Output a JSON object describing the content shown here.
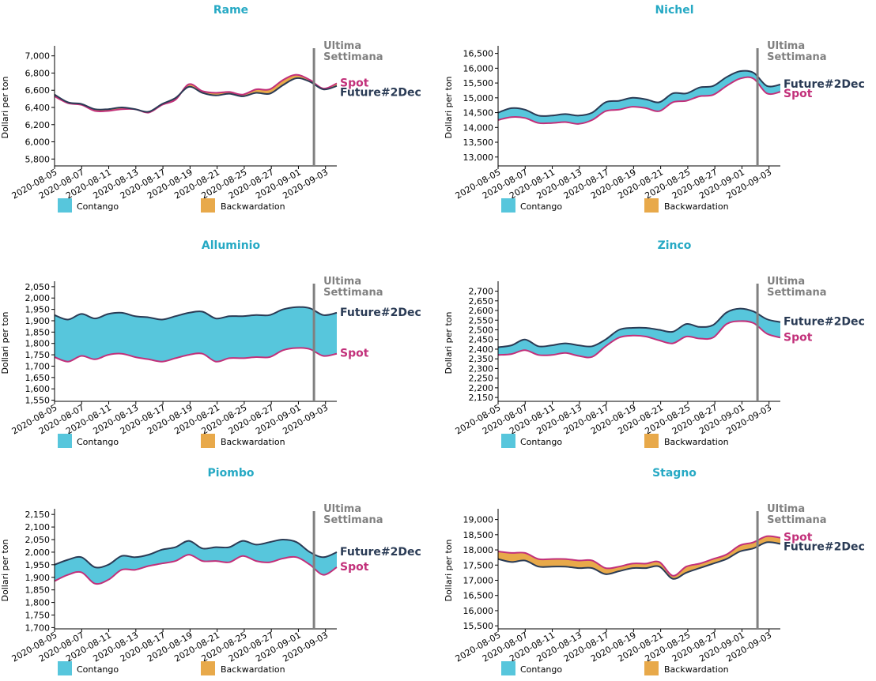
{
  "colors": {
    "title": "#26a9c4",
    "contango": "#57c6dc",
    "backwardation": "#e8a94a",
    "future_line": "#2a3b55",
    "spot_line": "#c2307a",
    "week_line": "#808080",
    "week_text": "#808080"
  },
  "labels": {
    "y_axis": "Dollari per ton",
    "legend_contango": "Contango",
    "legend_backwardation": "Backwardation",
    "future": "Future#2Dec",
    "spot": "Spot",
    "last_week_line1": "Ultima",
    "last_week_line2": "Settimana"
  },
  "chart_data": [
    {
      "type": "area",
      "title": "Rame",
      "xlabel": "",
      "ylabel": "Dollari per ton",
      "x_ticks": [
        "2020-08-05",
        "2020-08-07",
        "2020-08-11",
        "2020-08-13",
        "2020-08-17",
        "2020-08-19",
        "2020-08-21",
        "2020-08-25",
        "2020-08-27",
        "2020-09-01",
        "2020-09-03"
      ],
      "y_ticks": [
        "5,800",
        "6,000",
        "6,200",
        "6,400",
        "6,600",
        "6,800",
        "7,000"
      ],
      "y_tick_values": [
        5800,
        6000,
        6200,
        6400,
        6600,
        6800,
        7000
      ],
      "ylim": [
        5720,
        7080
      ],
      "last_week_index": 19.3,
      "legend": [
        "Contango",
        "Backwardation"
      ],
      "series": [
        {
          "name": "Future#2Dec",
          "values": [
            6550,
            6460,
            6440,
            6380,
            6380,
            6400,
            6380,
            6350,
            6440,
            6510,
            6640,
            6570,
            6540,
            6560,
            6530,
            6570,
            6560,
            6660,
            6740,
            6700,
            6610,
            6650
          ]
        },
        {
          "name": "Spot",
          "values": [
            6530,
            6450,
            6430,
            6360,
            6360,
            6380,
            6380,
            6340,
            6430,
            6490,
            6670,
            6590,
            6570,
            6580,
            6550,
            6610,
            6610,
            6720,
            6780,
            6720,
            6620,
            6680
          ]
        }
      ]
    },
    {
      "type": "area",
      "title": "Nichel",
      "xlabel": "",
      "ylabel": "Dollari per ton",
      "x_ticks": [
        "2020-08-05",
        "2020-08-07",
        "2020-08-11",
        "2020-08-13",
        "2020-08-17",
        "2020-08-19",
        "2020-08-21",
        "2020-08-25",
        "2020-08-27",
        "2020-09-01",
        "2020-09-03"
      ],
      "y_ticks": [
        "13,000",
        "13,500",
        "14,000",
        "14,500",
        "15,000",
        "15,500",
        "16,000",
        "16,500"
      ],
      "y_tick_values": [
        13000,
        13500,
        14000,
        14500,
        15000,
        15500,
        16000,
        16500
      ],
      "ylim": [
        12700,
        16650
      ],
      "last_week_index": 19.3,
      "legend": [
        "Contango",
        "Backwardation"
      ],
      "series": [
        {
          "name": "Future#2Dec",
          "values": [
            14500,
            14650,
            14600,
            14400,
            14400,
            14450,
            14400,
            14500,
            14850,
            14900,
            15000,
            14950,
            14850,
            15150,
            15150,
            15350,
            15400,
            15700,
            15900,
            15850,
            15400,
            15450
          ]
        },
        {
          "name": "Spot",
          "values": [
            14250,
            14350,
            14320,
            14150,
            14150,
            14180,
            14120,
            14250,
            14550,
            14600,
            14700,
            14650,
            14550,
            14850,
            14900,
            15050,
            15100,
            15400,
            15650,
            15650,
            15150,
            15200
          ]
        }
      ]
    },
    {
      "type": "area",
      "title": "Alluminio",
      "xlabel": "",
      "ylabel": "Dollari per ton",
      "x_ticks": [
        "2020-08-05",
        "2020-08-07",
        "2020-08-11",
        "2020-08-13",
        "2020-08-17",
        "2020-08-19",
        "2020-08-21",
        "2020-08-25",
        "2020-08-27",
        "2020-09-01",
        "2020-09-03"
      ],
      "y_ticks": [
        "1,550",
        "1,600",
        "1,650",
        "1,700",
        "1,750",
        "1,800",
        "1,850",
        "1,900",
        "1,950",
        "2,000",
        "2,050"
      ],
      "y_tick_values": [
        1550,
        1600,
        1650,
        1700,
        1750,
        1800,
        1850,
        1900,
        1950,
        2000,
        2050
      ],
      "ylim": [
        1545,
        2060
      ],
      "last_week_index": 19.3,
      "legend": [
        "Contango",
        "Backwardation"
      ],
      "series": [
        {
          "name": "Future#2Dec",
          "values": [
            1925,
            1905,
            1930,
            1910,
            1930,
            1935,
            1920,
            1915,
            1905,
            1920,
            1935,
            1940,
            1910,
            1920,
            1920,
            1925,
            1925,
            1950,
            1960,
            1955,
            1925,
            1935
          ]
        },
        {
          "name": "Spot",
          "values": [
            1740,
            1720,
            1745,
            1730,
            1750,
            1755,
            1740,
            1730,
            1720,
            1735,
            1750,
            1755,
            1720,
            1735,
            1735,
            1740,
            1740,
            1770,
            1780,
            1775,
            1745,
            1755
          ]
        }
      ]
    },
    {
      "type": "area",
      "title": "Zinco",
      "xlabel": "",
      "ylabel": "Dollari per ton",
      "x_ticks": [
        "2020-08-05",
        "2020-08-07",
        "2020-08-11",
        "2020-08-13",
        "2020-08-17",
        "2020-08-19",
        "2020-08-21",
        "2020-08-25",
        "2020-08-27",
        "2020-09-01",
        "2020-09-03"
      ],
      "y_ticks": [
        "2,150",
        "2,200",
        "2,250",
        "2,300",
        "2,350",
        "2,400",
        "2,450",
        "2,500",
        "2,550",
        "2,600",
        "2,650",
        "2,700"
      ],
      "y_tick_values": [
        2150,
        2200,
        2250,
        2300,
        2350,
        2400,
        2450,
        2500,
        2550,
        2600,
        2650,
        2700
      ],
      "ylim": [
        2130,
        2735
      ],
      "last_week_index": 19.3,
      "legend": [
        "Contango",
        "Backwardation"
      ],
      "series": [
        {
          "name": "Future#2Dec",
          "values": [
            2410,
            2420,
            2450,
            2415,
            2420,
            2430,
            2420,
            2415,
            2450,
            2500,
            2510,
            2510,
            2500,
            2490,
            2530,
            2515,
            2525,
            2590,
            2610,
            2595,
            2555,
            2540
          ]
        },
        {
          "name": "Spot",
          "values": [
            2370,
            2375,
            2395,
            2370,
            2370,
            2380,
            2365,
            2360,
            2415,
            2460,
            2470,
            2465,
            2445,
            2430,
            2465,
            2455,
            2460,
            2530,
            2545,
            2535,
            2480,
            2460
          ]
        }
      ]
    },
    {
      "type": "area",
      "title": "Piombo",
      "xlabel": "",
      "ylabel": "Dollari per ton",
      "x_ticks": [
        "2020-08-05",
        "2020-08-07",
        "2020-08-11",
        "2020-08-13",
        "2020-08-17",
        "2020-08-19",
        "2020-08-21",
        "2020-08-25",
        "2020-08-27",
        "2020-09-01",
        "2020-09-03"
      ],
      "y_ticks": [
        "1,700",
        "1,750",
        "1,800",
        "1,850",
        "1,900",
        "1,950",
        "2,000",
        "2,050",
        "2,100",
        "2,150"
      ],
      "y_tick_values": [
        1700,
        1750,
        1800,
        1850,
        1900,
        1950,
        2000,
        2050,
        2100,
        2150
      ],
      "ylim": [
        1695,
        2160
      ],
      "last_week_index": 19.3,
      "legend": [
        "Contango",
        "Backwardation"
      ],
      "series": [
        {
          "name": "Future#2Dec",
          "values": [
            1950,
            1970,
            1980,
            1940,
            1950,
            1985,
            1980,
            1990,
            2010,
            2020,
            2045,
            2015,
            2020,
            2020,
            2045,
            2030,
            2040,
            2050,
            2040,
            2000,
            1980,
            2000
          ]
        },
        {
          "name": "Spot",
          "values": [
            1885,
            1910,
            1920,
            1875,
            1890,
            1930,
            1930,
            1945,
            1955,
            1965,
            1990,
            1965,
            1965,
            1960,
            1985,
            1965,
            1960,
            1975,
            1980,
            1950,
            1910,
            1940
          ]
        }
      ]
    },
    {
      "type": "area",
      "title": "Stagno",
      "xlabel": "",
      "ylabel": "Dollari per ton",
      "x_ticks": [
        "2020-08-05",
        "2020-08-07",
        "2020-08-11",
        "2020-08-13",
        "2020-08-17",
        "2020-08-19",
        "2020-08-21",
        "2020-08-25",
        "2020-08-27",
        "2020-09-01",
        "2020-09-03"
      ],
      "y_ticks": [
        "15,500",
        "16,000",
        "16,500",
        "17,000",
        "17,500",
        "18,000",
        "18,500",
        "19,000"
      ],
      "y_tick_values": [
        15500,
        16000,
        16500,
        17000,
        17500,
        18000,
        18500,
        19000
      ],
      "ylim": [
        15400,
        19250
      ],
      "last_week_index": 19.3,
      "legend": [
        "Contango",
        "Backwardation"
      ],
      "series": [
        {
          "name": "Future#2Dec",
          "values": [
            17700,
            17600,
            17650,
            17450,
            17450,
            17450,
            17400,
            17400,
            17200,
            17300,
            17400,
            17400,
            17450,
            17050,
            17250,
            17400,
            17550,
            17700,
            17950,
            18050,
            18250,
            18200
          ]
        },
        {
          "name": "Spot",
          "values": [
            17950,
            17900,
            17900,
            17700,
            17700,
            17700,
            17650,
            17650,
            17400,
            17450,
            17550,
            17550,
            17600,
            17150,
            17450,
            17550,
            17700,
            17850,
            18150,
            18250,
            18450,
            18400
          ]
        }
      ]
    }
  ]
}
